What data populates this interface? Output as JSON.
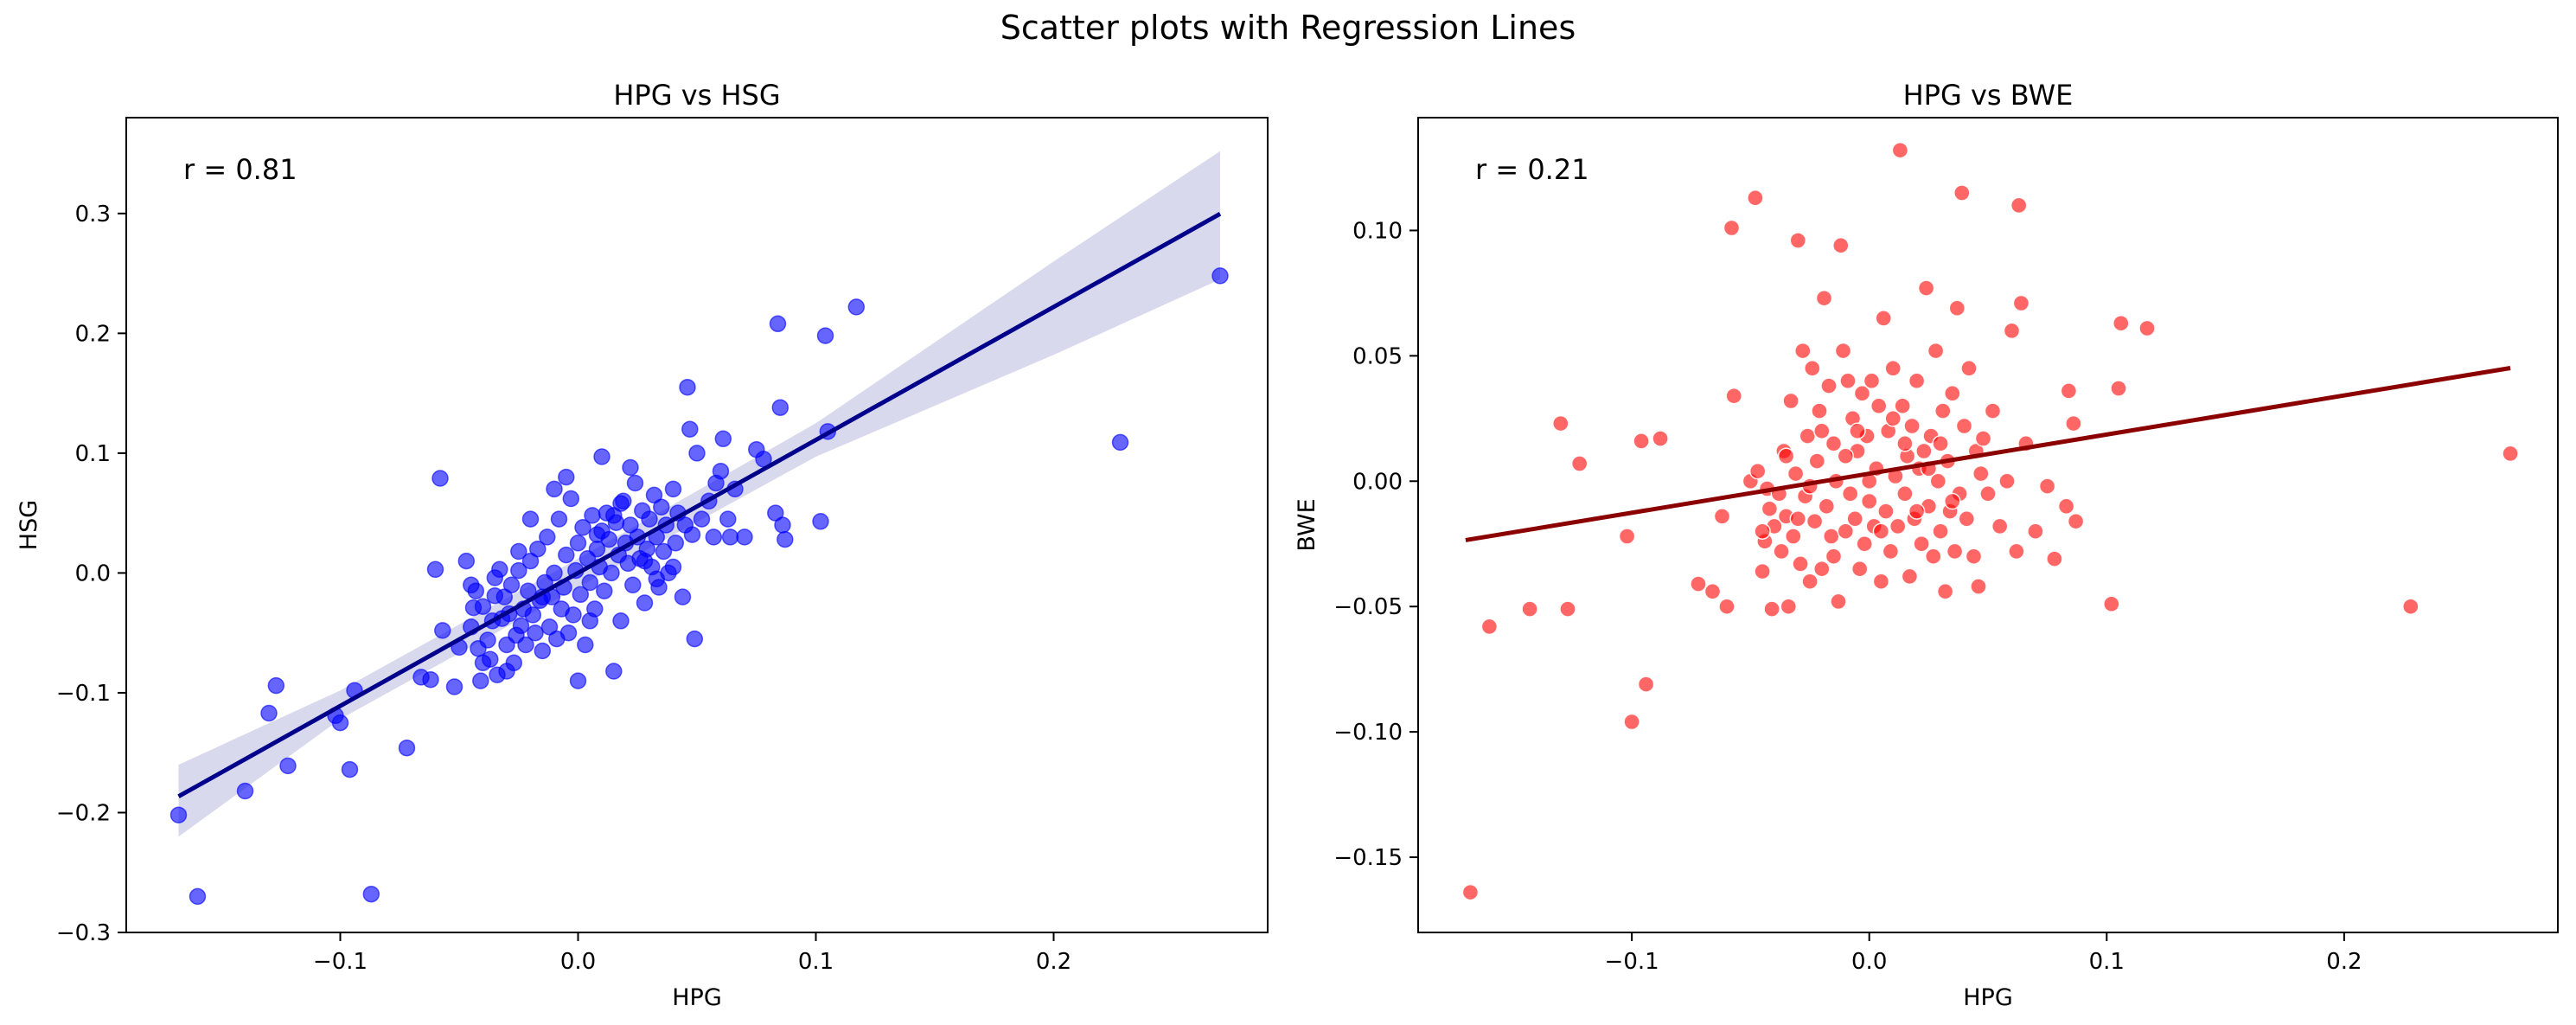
{
  "figure": {
    "suptitle": "Scatter plots with Regression Lines"
  },
  "chart_data": [
    {
      "type": "scatter",
      "title": "HPG vs HSG",
      "xlabel": "HPG",
      "ylabel": "HSG",
      "xlim": [
        -0.19,
        0.29
      ],
      "ylim": [
        -0.3,
        0.38
      ],
      "xticks": [
        -0.1,
        0.0,
        0.1,
        0.2
      ],
      "xtick_labels": [
        "−0.1",
        "0.0",
        "0.1",
        "0.2"
      ],
      "yticks": [
        -0.3,
        -0.2,
        -0.1,
        0.0,
        0.1,
        0.2,
        0.3
      ],
      "ytick_labels": [
        "−0.3",
        "−0.2",
        "−0.1",
        "0.0",
        "0.1",
        "0.2",
        "0.3"
      ],
      "annotation": "r = 0.81",
      "grid": false,
      "point_color": "#0000ff",
      "point_opacity": 0.6,
      "line_color": "#00008b",
      "ci_color": "#8080c8",
      "regression": {
        "slope": 1.11,
        "intercept": 0.0,
        "x_range": [
          -0.168,
          0.27
        ]
      },
      "ci_band": {
        "x": [
          -0.168,
          -0.1,
          0.0,
          0.1,
          0.2,
          0.27
        ],
        "lower": [
          -0.22,
          -0.122,
          -0.012,
          0.097,
          0.182,
          0.245
        ],
        "upper": [
          -0.16,
          -0.098,
          0.012,
          0.125,
          0.26,
          0.352
        ]
      },
      "points": [
        [
          -0.168,
          -0.202
        ],
        [
          -0.16,
          -0.27
        ],
        [
          -0.14,
          -0.182
        ],
        [
          -0.13,
          -0.117
        ],
        [
          -0.127,
          -0.094
        ],
        [
          -0.122,
          -0.161
        ],
        [
          -0.102,
          -0.119
        ],
        [
          -0.1,
          -0.125
        ],
        [
          -0.096,
          -0.164
        ],
        [
          -0.094,
          -0.098
        ],
        [
          -0.087,
          -0.268
        ],
        [
          -0.072,
          -0.146
        ],
        [
          -0.066,
          -0.087
        ],
        [
          -0.062,
          -0.089
        ],
        [
          -0.06,
          0.003
        ],
        [
          -0.058,
          0.079
        ],
        [
          -0.057,
          -0.048
        ],
        [
          -0.052,
          -0.095
        ],
        [
          -0.05,
          -0.062
        ],
        [
          -0.047,
          0.01
        ],
        [
          -0.045,
          -0.01
        ],
        [
          -0.044,
          -0.029
        ],
        [
          -0.043,
          -0.015
        ],
        [
          -0.042,
          -0.063
        ],
        [
          -0.041,
          -0.09
        ],
        [
          -0.04,
          -0.028
        ],
        [
          -0.038,
          -0.056
        ],
        [
          -0.037,
          -0.072
        ],
        [
          -0.036,
          -0.04
        ],
        [
          -0.035,
          -0.019
        ],
        [
          -0.034,
          -0.085
        ],
        [
          -0.033,
          0.003
        ],
        [
          -0.032,
          -0.038
        ],
        [
          -0.031,
          -0.02
        ],
        [
          -0.03,
          -0.06
        ],
        [
          -0.029,
          -0.034
        ],
        [
          -0.028,
          -0.01
        ],
        [
          -0.027,
          -0.075
        ],
        [
          -0.026,
          -0.052
        ],
        [
          -0.025,
          0.002
        ],
        [
          -0.024,
          -0.044
        ],
        [
          -0.023,
          -0.03
        ],
        [
          -0.022,
          -0.06
        ],
        [
          -0.021,
          -0.015
        ],
        [
          -0.02,
          0.01
        ],
        [
          -0.019,
          -0.035
        ],
        [
          -0.018,
          -0.05
        ],
        [
          -0.017,
          0.02
        ],
        [
          -0.016,
          -0.023
        ],
        [
          -0.015,
          -0.065
        ],
        [
          -0.014,
          -0.008
        ],
        [
          -0.013,
          0.03
        ],
        [
          -0.012,
          -0.045
        ],
        [
          -0.011,
          -0.02
        ],
        [
          -0.01,
          0.0
        ],
        [
          -0.009,
          -0.055
        ],
        [
          -0.008,
          0.045
        ],
        [
          -0.007,
          -0.03
        ],
        [
          -0.006,
          -0.012
        ],
        [
          -0.005,
          0.015
        ],
        [
          -0.004,
          -0.05
        ],
        [
          -0.003,
          0.062
        ],
        [
          -0.002,
          -0.035
        ],
        [
          -0.001,
          0.002
        ],
        [
          0.0,
          0.025
        ],
        [
          0.001,
          -0.018
        ],
        [
          0.002,
          0.038
        ],
        [
          0.003,
          -0.06
        ],
        [
          0.004,
          0.012
        ],
        [
          0.005,
          -0.008
        ],
        [
          0.006,
          0.048
        ],
        [
          0.007,
          -0.03
        ],
        [
          0.008,
          0.02
        ],
        [
          0.009,
          0.005
        ],
        [
          0.01,
          0.035
        ],
        [
          0.011,
          -0.015
        ],
        [
          0.012,
          0.05
        ],
        [
          0.013,
          0.028
        ],
        [
          0.014,
          0.0
        ],
        [
          0.015,
          -0.082
        ],
        [
          0.016,
          0.042
        ],
        [
          0.017,
          0.015
        ],
        [
          0.018,
          -0.04
        ],
        [
          0.019,
          0.06
        ],
        [
          0.02,
          0.025
        ],
        [
          0.021,
          0.008
        ],
        [
          0.022,
          0.04
        ],
        [
          0.023,
          -0.01
        ],
        [
          0.024,
          0.075
        ],
        [
          0.025,
          0.03
        ],
        [
          0.026,
          0.012
        ],
        [
          0.027,
          0.052
        ],
        [
          0.028,
          -0.025
        ],
        [
          0.029,
          0.02
        ],
        [
          0.03,
          0.045
        ],
        [
          0.031,
          0.005
        ],
        [
          0.032,
          0.065
        ],
        [
          0.033,
          0.03
        ],
        [
          0.034,
          -0.012
        ],
        [
          0.035,
          0.055
        ],
        [
          0.036,
          0.018
        ],
        [
          0.037,
          0.04
        ],
        [
          0.038,
          0.0
        ],
        [
          0.04,
          0.07
        ],
        [
          0.041,
          0.025
        ],
        [
          0.042,
          0.05
        ],
        [
          0.044,
          -0.02
        ],
        [
          0.045,
          0.04
        ],
        [
          0.046,
          0.155
        ],
        [
          0.047,
          0.12
        ],
        [
          0.048,
          0.032
        ],
        [
          0.049,
          -0.055
        ],
        [
          0.05,
          0.1
        ],
        [
          0.052,
          0.045
        ],
        [
          0.055,
          0.06
        ],
        [
          0.057,
          0.03
        ],
        [
          0.058,
          0.075
        ],
        [
          0.06,
          0.085
        ],
        [
          0.061,
          0.112
        ],
        [
          0.063,
          0.045
        ],
        [
          0.064,
          0.03
        ],
        [
          0.066,
          0.07
        ],
        [
          0.07,
          0.03
        ],
        [
          0.075,
          0.103
        ],
        [
          0.078,
          0.095
        ],
        [
          0.083,
          0.05
        ],
        [
          0.084,
          0.208
        ],
        [
          0.085,
          0.138
        ],
        [
          0.086,
          0.04
        ],
        [
          0.087,
          0.028
        ],
        [
          0.102,
          0.043
        ],
        [
          0.104,
          0.198
        ],
        [
          0.105,
          0.118
        ],
        [
          0.117,
          0.222
        ],
        [
          0.228,
          0.109
        ],
        [
          0.27,
          0.248
        ],
        [
          -0.01,
          0.07
        ],
        [
          -0.02,
          0.045
        ],
        [
          0.01,
          0.097
        ],
        [
          -0.035,
          -0.004
        ],
        [
          -0.045,
          -0.045
        ],
        [
          -0.015,
          -0.02
        ],
        [
          0.005,
          -0.04
        ],
        [
          -0.025,
          0.018
        ],
        [
          0.022,
          0.088
        ],
        [
          -0.005,
          0.08
        ],
        [
          0.028,
          0.01
        ],
        [
          -0.04,
          -0.075
        ],
        [
          0.033,
          -0.005
        ],
        [
          0.0,
          -0.09
        ],
        [
          0.008,
          0.032
        ],
        [
          -0.03,
          -0.082
        ],
        [
          0.015,
          0.048
        ],
        [
          0.018,
          0.058
        ],
        [
          0.04,
          0.005
        ]
      ]
    },
    {
      "type": "scatter",
      "title": "HPG vs BWE",
      "xlabel": "HPG",
      "ylabel": "BWE",
      "xlim": [
        -0.19,
        0.29
      ],
      "ylim": [
        -0.18,
        0.145
      ],
      "xticks": [
        -0.1,
        0.0,
        0.1,
        0.2
      ],
      "xtick_labels": [
        "−0.1",
        "0.0",
        "0.1",
        "0.2"
      ],
      "yticks": [
        -0.15,
        -0.1,
        -0.05,
        0.0,
        0.05,
        0.1
      ],
      "ytick_labels": [
        "−0.15",
        "−0.10",
        "−0.05",
        "0.00",
        "0.05",
        "0.10"
      ],
      "annotation": "r = 0.21",
      "grid": false,
      "point_color": "#ff0000",
      "point_opacity": 0.6,
      "line_color": "#8b0000",
      "regression": {
        "slope": 0.156,
        "intercept": 0.003,
        "x_range": [
          -0.17,
          0.27
        ]
      },
      "points": [
        [
          -0.168,
          -0.164
        ],
        [
          -0.16,
          -0.058
        ],
        [
          -0.143,
          -0.051
        ],
        [
          -0.13,
          0.023
        ],
        [
          -0.127,
          -0.051
        ],
        [
          -0.122,
          0.007
        ],
        [
          -0.1,
          -0.096
        ],
        [
          -0.102,
          -0.022
        ],
        [
          -0.096,
          0.016
        ],
        [
          -0.094,
          -0.081
        ],
        [
          -0.088,
          0.017
        ],
        [
          -0.072,
          -0.041
        ],
        [
          -0.066,
          -0.044
        ],
        [
          -0.062,
          -0.014
        ],
        [
          -0.06,
          -0.05
        ],
        [
          -0.058,
          0.101
        ],
        [
          -0.057,
          0.034
        ],
        [
          -0.05,
          0.0
        ],
        [
          -0.048,
          0.113
        ],
        [
          -0.047,
          0.004
        ],
        [
          -0.045,
          -0.036
        ],
        [
          -0.044,
          -0.024
        ],
        [
          -0.043,
          -0.003
        ],
        [
          -0.042,
          -0.011
        ],
        [
          -0.041,
          -0.051
        ],
        [
          -0.04,
          -0.018
        ],
        [
          -0.038,
          -0.005
        ],
        [
          -0.037,
          -0.028
        ],
        [
          -0.036,
          0.012
        ],
        [
          -0.035,
          -0.014
        ],
        [
          -0.034,
          -0.05
        ],
        [
          -0.033,
          0.032
        ],
        [
          -0.032,
          -0.022
        ],
        [
          -0.031,
          0.003
        ],
        [
          -0.03,
          0.096
        ],
        [
          -0.029,
          -0.033
        ],
        [
          -0.028,
          0.052
        ],
        [
          -0.027,
          -0.006
        ],
        [
          -0.026,
          0.018
        ],
        [
          -0.025,
          -0.04
        ],
        [
          -0.024,
          0.045
        ],
        [
          -0.023,
          -0.016
        ],
        [
          -0.022,
          0.008
        ],
        [
          -0.021,
          0.028
        ],
        [
          -0.02,
          -0.035
        ],
        [
          -0.019,
          0.073
        ],
        [
          -0.018,
          -0.01
        ],
        [
          -0.017,
          0.038
        ],
        [
          -0.016,
          -0.022
        ],
        [
          -0.015,
          0.015
        ],
        [
          -0.014,
          0.0
        ],
        [
          -0.013,
          -0.048
        ],
        [
          -0.012,
          0.094
        ],
        [
          -0.011,
          0.052
        ],
        [
          -0.01,
          -0.02
        ],
        [
          -0.009,
          0.04
        ],
        [
          -0.008,
          -0.005
        ],
        [
          -0.007,
          0.025
        ],
        [
          -0.006,
          -0.015
        ],
        [
          -0.005,
          0.012
        ],
        [
          -0.004,
          -0.035
        ],
        [
          -0.003,
          0.035
        ],
        [
          -0.002,
          -0.025
        ],
        [
          -0.001,
          0.018
        ],
        [
          0.0,
          -0.008
        ],
        [
          0.001,
          0.04
        ],
        [
          0.002,
          -0.018
        ],
        [
          0.003,
          0.005
        ],
        [
          0.004,
          0.03
        ],
        [
          0.005,
          -0.04
        ],
        [
          0.006,
          0.065
        ],
        [
          0.007,
          -0.012
        ],
        [
          0.008,
          0.02
        ],
        [
          0.009,
          -0.028
        ],
        [
          0.01,
          0.045
        ],
        [
          0.011,
          0.002
        ],
        [
          0.012,
          -0.018
        ],
        [
          0.013,
          0.132
        ],
        [
          0.014,
          0.03
        ],
        [
          0.015,
          -0.005
        ],
        [
          0.016,
          0.01
        ],
        [
          0.017,
          -0.038
        ],
        [
          0.018,
          0.022
        ],
        [
          0.019,
          -0.015
        ],
        [
          0.02,
          0.04
        ],
        [
          0.021,
          0.005
        ],
        [
          0.022,
          -0.025
        ],
        [
          0.023,
          0.012
        ],
        [
          0.024,
          0.077
        ],
        [
          0.025,
          -0.01
        ],
        [
          0.026,
          0.018
        ],
        [
          0.027,
          -0.03
        ],
        [
          0.028,
          0.052
        ],
        [
          0.029,
          0.0
        ],
        [
          0.03,
          -0.02
        ],
        [
          0.031,
          0.028
        ],
        [
          0.032,
          -0.044
        ],
        [
          0.033,
          0.008
        ],
        [
          0.034,
          -0.012
        ],
        [
          0.035,
          0.035
        ],
        [
          0.036,
          -0.028
        ],
        [
          0.037,
          0.069
        ],
        [
          0.038,
          -0.005
        ],
        [
          0.039,
          0.115
        ],
        [
          0.04,
          0.022
        ],
        [
          0.041,
          -0.015
        ],
        [
          0.042,
          0.045
        ],
        [
          0.044,
          -0.03
        ],
        [
          0.045,
          0.012
        ],
        [
          0.046,
          -0.042
        ],
        [
          0.047,
          0.003
        ],
        [
          0.048,
          0.017
        ],
        [
          0.05,
          -0.005
        ],
        [
          0.052,
          0.028
        ],
        [
          0.055,
          -0.018
        ],
        [
          0.058,
          0.0
        ],
        [
          0.06,
          0.06
        ],
        [
          0.062,
          -0.028
        ],
        [
          0.063,
          0.11
        ],
        [
          0.064,
          0.071
        ],
        [
          0.066,
          0.015
        ],
        [
          0.07,
          -0.02
        ],
        [
          0.075,
          -0.002
        ],
        [
          0.078,
          -0.031
        ],
        [
          0.083,
          -0.01
        ],
        [
          0.084,
          0.036
        ],
        [
          0.086,
          0.023
        ],
        [
          0.087,
          -0.016
        ],
        [
          0.102,
          -0.049
        ],
        [
          0.105,
          0.037
        ],
        [
          0.106,
          0.063
        ],
        [
          0.117,
          0.061
        ],
        [
          0.228,
          -0.05
        ],
        [
          0.27,
          0.011
        ],
        [
          -0.045,
          -0.02
        ],
        [
          -0.035,
          0.01
        ],
        [
          -0.025,
          -0.002
        ],
        [
          -0.015,
          -0.03
        ],
        [
          -0.005,
          0.02
        ],
        [
          0.005,
          -0.02
        ],
        [
          0.015,
          0.015
        ],
        [
          0.025,
          0.005
        ],
        [
          0.035,
          -0.008
        ],
        [
          -0.02,
          0.02
        ],
        [
          0.0,
          0.0
        ],
        [
          0.01,
          0.025
        ],
        [
          -0.01,
          0.01
        ],
        [
          0.02,
          -0.012
        ],
        [
          0.03,
          0.015
        ],
        [
          -0.03,
          -0.015
        ]
      ]
    }
  ]
}
